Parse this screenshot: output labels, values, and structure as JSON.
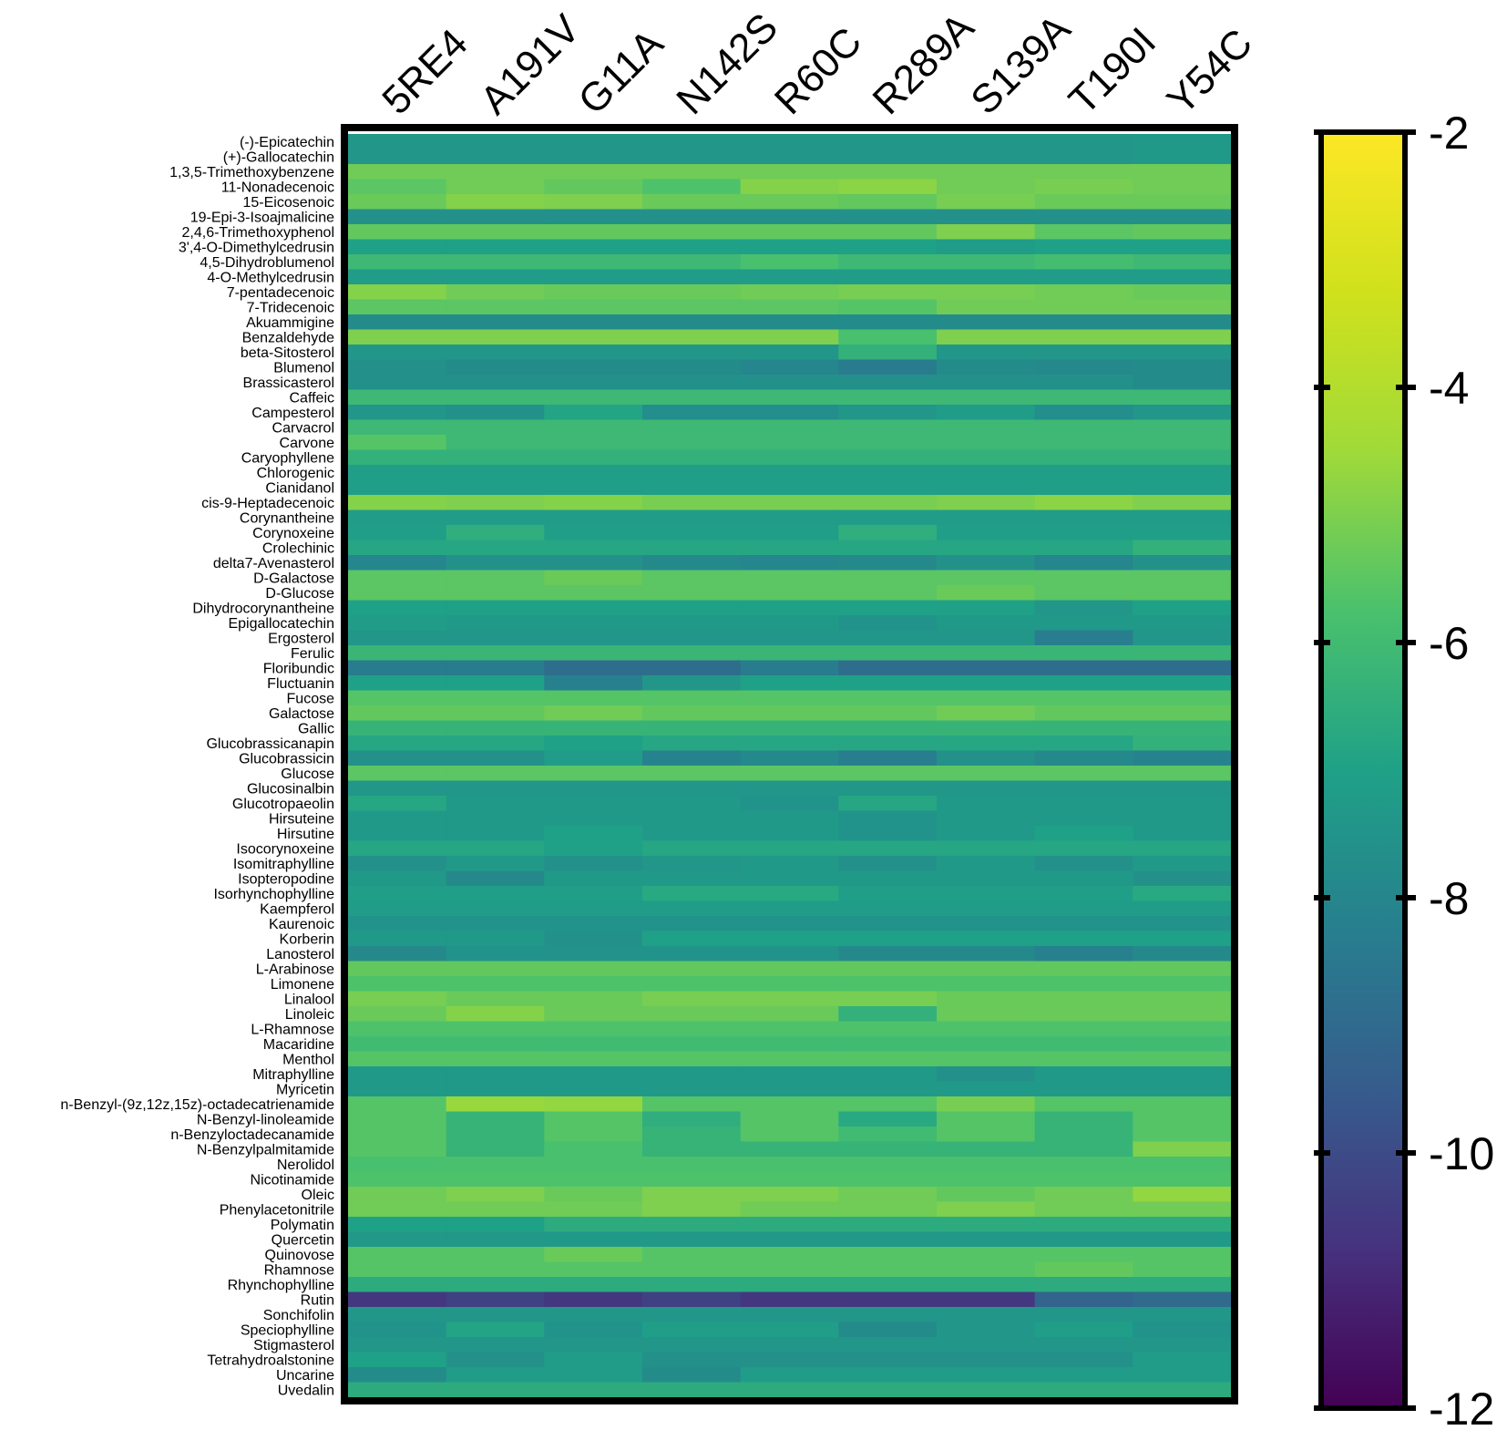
{
  "chart_data": {
    "type": "heatmap",
    "title": "",
    "xlabel": "",
    "ylabel": "",
    "columns": [
      "5RE4",
      "A191V",
      "G11A",
      "N142S",
      "R60C",
      "R289A",
      "S139A",
      "T190I",
      "Y54C"
    ],
    "rows": [
      "(-)-Epicatechin",
      "(+)-Gallocatechin",
      "1,3,5-Trimethoxybenzene",
      "11-Nonadecenoic",
      "15-Eicosenoic",
      "19-Epi-3-Isoajmalicine",
      "2,4,6-Trimethoxyphenol",
      "3',4-O-Dimethylcedrusin",
      "4,5-Dihydroblumenol",
      "4-O-Methylcedrusin",
      "7-pentadecenoic",
      "7-Tridecenoic",
      "Akuammigine",
      "Benzaldehyde",
      "beta-Sitosterol",
      "Blumenol",
      "Brassicasterol",
      "Caffeic",
      "Campesterol",
      "Carvacrol",
      "Carvone",
      "Caryophyllene",
      "Chlorogenic",
      "Cianidanol",
      "cis-9-Heptadecenoic",
      "Corynantheine",
      "Corynoxeine",
      "Crolechinic",
      "delta7-Avenasterol",
      "D-Galactose",
      "D-Glucose",
      "Dihydrocorynantheine",
      "Epigallocatechin",
      "Ergosterol",
      "Ferulic",
      "Floribundic",
      "Fluctuanin",
      "Fucose",
      "Galactose",
      "Gallic",
      "Glucobrassicanapin",
      "Glucobrassicin",
      "Glucose",
      "Glucosinalbin",
      "Glucotropaeolin",
      "Hirsuteine",
      "Hirsutine",
      "Isocorynoxeine",
      "Isomitraphylline",
      "Isopteropodine",
      "Isorhynchophylline",
      "Kaempferol",
      "Kaurenoic",
      "Korberin",
      "Lanosterol",
      "L-Arabinose",
      "Limonene",
      "Linalool",
      "Linoleic",
      "L-Rhamnose",
      "Macaridine",
      "Menthol",
      "Mitraphylline",
      "Myricetin",
      "n-Benzyl-(9z,12z,15z)-octadecatrienamide",
      "N-Benzyl-linoleamide",
      "n-Benzyloctadecanamide",
      "N-Benzylpalmitamide",
      "Nerolidol",
      "Nicotinamide",
      "Oleic",
      "Phenylacetonitrile",
      "Polymatin",
      "Quercetin",
      "Quinovose",
      "Rhamnose",
      "Rhynchophylline",
      "Rutin",
      "Sonchifolin",
      "Speciophylline",
      "Stigmasterol",
      "Tetrahydroalstonine",
      "Uncarine",
      "Uvedalin"
    ],
    "values": [
      [
        -7.4,
        -7.4,
        -7.4,
        -7.4,
        -7.4,
        -7.4,
        -7.4,
        -7.4,
        -7.3
      ],
      [
        -7.4,
        -7.4,
        -7.4,
        -7.4,
        -7.4,
        -7.4,
        -7.4,
        -7.4,
        -7.3
      ],
      [
        -5.2,
        -5.2,
        -5.2,
        -5.2,
        -5.2,
        -5.2,
        -5.2,
        -5.2,
        -5.2
      ],
      [
        -5.5,
        -5.2,
        -5.4,
        -5.7,
        -4.9,
        -4.8,
        -5.2,
        -5.1,
        -5.2
      ],
      [
        -5.3,
        -4.9,
        -5.0,
        -5.3,
        -5.3,
        -5.4,
        -5.1,
        -5.3,
        -5.3
      ],
      [
        -7.6,
        -7.6,
        -7.6,
        -7.6,
        -7.6,
        -7.6,
        -7.6,
        -7.6,
        -7.6
      ],
      [
        -5.4,
        -5.4,
        -5.4,
        -5.4,
        -5.4,
        -5.4,
        -5.0,
        -5.5,
        -5.4
      ],
      [
        -7.0,
        -7.0,
        -7.0,
        -7.0,
        -7.0,
        -7.0,
        -7.2,
        -7.0,
        -7.0
      ],
      [
        -6.1,
        -6.1,
        -6.1,
        -6.1,
        -5.8,
        -6.1,
        -6.1,
        -5.9,
        -6.1
      ],
      [
        -7.2,
        -7.2,
        -7.2,
        -7.2,
        -7.2,
        -7.2,
        -7.2,
        -7.2,
        -7.2
      ],
      [
        -4.9,
        -5.2,
        -5.3,
        -5.3,
        -5.2,
        -5.1,
        -5.1,
        -5.2,
        -5.3
      ],
      [
        -5.5,
        -5.5,
        -5.5,
        -5.5,
        -5.5,
        -5.6,
        -5.2,
        -5.2,
        -5.2
      ],
      [
        -7.8,
        -7.8,
        -7.8,
        -7.8,
        -7.8,
        -7.8,
        -7.8,
        -7.8,
        -7.8
      ],
      [
        -5.0,
        -5.0,
        -5.0,
        -5.0,
        -5.0,
        -5.8,
        -5.0,
        -5.0,
        -5.0
      ],
      [
        -7.4,
        -7.4,
        -7.4,
        -7.4,
        -7.4,
        -6.4,
        -7.4,
        -7.4,
        -7.4
      ],
      [
        -7.6,
        -7.8,
        -7.8,
        -7.8,
        -8.0,
        -8.4,
        -7.8,
        -7.9,
        -7.8
      ],
      [
        -7.6,
        -7.6,
        -7.6,
        -7.6,
        -7.6,
        -7.6,
        -7.6,
        -7.6,
        -7.8
      ],
      [
        -6.1,
        -6.1,
        -6.1,
        -6.1,
        -6.1,
        -6.1,
        -6.1,
        -6.1,
        -6.1
      ],
      [
        -7.4,
        -7.6,
        -6.9,
        -7.7,
        -7.7,
        -7.4,
        -7.2,
        -7.7,
        -7.4
      ],
      [
        -6.1,
        -6.1,
        -6.1,
        -6.1,
        -6.1,
        -6.1,
        -6.1,
        -6.1,
        -6.1
      ],
      [
        -5.6,
        -6.1,
        -6.1,
        -6.1,
        -6.1,
        -6.1,
        -6.1,
        -6.1,
        -6.1
      ],
      [
        -6.4,
        -6.4,
        -6.4,
        -6.4,
        -6.4,
        -6.4,
        -6.4,
        -6.4,
        -6.4
      ],
      [
        -7.1,
        -7.1,
        -7.1,
        -7.1,
        -7.1,
        -7.1,
        -7.1,
        -7.1,
        -7.1
      ],
      [
        -7.1,
        -7.1,
        -7.1,
        -7.1,
        -7.1,
        -7.1,
        -7.1,
        -7.1,
        -7.1
      ],
      [
        -4.9,
        -5.0,
        -4.9,
        -5.1,
        -5.1,
        -5.1,
        -5.0,
        -4.8,
        -5.0
      ],
      [
        -7.2,
        -7.2,
        -7.2,
        -7.2,
        -7.2,
        -7.2,
        -7.2,
        -7.2,
        -7.2
      ],
      [
        -7.1,
        -6.5,
        -7.1,
        -7.1,
        -7.1,
        -6.5,
        -7.1,
        -7.1,
        -7.1
      ],
      [
        -6.8,
        -6.8,
        -6.8,
        -6.8,
        -6.8,
        -6.8,
        -6.8,
        -6.8,
        -6.4
      ],
      [
        -8.0,
        -7.6,
        -7.6,
        -7.9,
        -8.0,
        -7.9,
        -7.6,
        -8.0,
        -7.6
      ],
      [
        -5.5,
        -5.5,
        -5.3,
        -5.5,
        -5.5,
        -5.5,
        -5.5,
        -5.5,
        -5.5
      ],
      [
        -5.5,
        -5.5,
        -5.5,
        -5.5,
        -5.5,
        -5.5,
        -5.3,
        -5.5,
        -5.5
      ],
      [
        -7.0,
        -7.0,
        -7.0,
        -7.0,
        -7.0,
        -7.0,
        -7.0,
        -7.4,
        -7.0
      ],
      [
        -7.2,
        -7.3,
        -7.3,
        -7.3,
        -7.3,
        -7.5,
        -7.3,
        -7.3,
        -7.3
      ],
      [
        -7.4,
        -7.4,
        -7.4,
        -7.4,
        -7.4,
        -7.4,
        -7.4,
        -8.3,
        -7.4
      ],
      [
        -6.2,
        -6.2,
        -6.2,
        -6.2,
        -6.2,
        -6.2,
        -6.2,
        -6.2,
        -6.2
      ],
      [
        -8.4,
        -8.4,
        -8.9,
        -8.9,
        -8.4,
        -8.9,
        -8.9,
        -8.9,
        -8.9
      ],
      [
        -7.0,
        -7.0,
        -8.2,
        -7.4,
        -7.0,
        -7.0,
        -7.0,
        -7.0,
        -7.0
      ],
      [
        -5.6,
        -5.6,
        -5.6,
        -5.6,
        -5.6,
        -5.6,
        -5.6,
        -5.6,
        -5.6
      ],
      [
        -5.4,
        -5.4,
        -5.2,
        -5.4,
        -5.4,
        -5.4,
        -5.2,
        -5.4,
        -5.4
      ],
      [
        -6.3,
        -6.3,
        -6.3,
        -6.3,
        -6.3,
        -6.3,
        -6.3,
        -6.3,
        -6.3
      ],
      [
        -6.8,
        -6.8,
        -7.0,
        -6.8,
        -6.8,
        -6.8,
        -6.8,
        -6.8,
        -6.4
      ],
      [
        -7.6,
        -7.6,
        -7.2,
        -8.1,
        -7.9,
        -8.3,
        -7.6,
        -7.9,
        -8.1
      ],
      [
        -5.5,
        -5.5,
        -5.5,
        -5.5,
        -5.5,
        -5.5,
        -5.5,
        -5.5,
        -5.5
      ],
      [
        -7.4,
        -7.4,
        -7.4,
        -7.4,
        -7.4,
        -7.4,
        -7.4,
        -7.4,
        -7.4
      ],
      [
        -6.8,
        -7.3,
        -7.3,
        -7.3,
        -7.5,
        -6.8,
        -7.3,
        -7.3,
        -7.3
      ],
      [
        -7.3,
        -7.3,
        -7.3,
        -7.3,
        -7.3,
        -7.5,
        -7.3,
        -7.3,
        -7.3
      ],
      [
        -7.3,
        -7.3,
        -7.0,
        -7.3,
        -7.3,
        -7.5,
        -7.3,
        -7.0,
        -7.3
      ],
      [
        -6.8,
        -6.8,
        -7.0,
        -6.8,
        -6.8,
        -6.8,
        -6.8,
        -6.8,
        -6.8
      ],
      [
        -7.6,
        -7.3,
        -7.6,
        -7.4,
        -7.3,
        -7.6,
        -7.3,
        -7.6,
        -7.3
      ],
      [
        -7.3,
        -7.9,
        -7.3,
        -7.3,
        -7.3,
        -7.3,
        -7.3,
        -7.3,
        -7.6
      ],
      [
        -7.1,
        -7.1,
        -7.1,
        -6.7,
        -6.7,
        -7.1,
        -7.1,
        -7.1,
        -6.7
      ],
      [
        -7.2,
        -7.2,
        -7.2,
        -7.2,
        -7.2,
        -7.2,
        -7.2,
        -7.2,
        -7.2
      ],
      [
        -7.5,
        -7.5,
        -7.5,
        -7.5,
        -7.5,
        -7.5,
        -7.5,
        -7.5,
        -7.5
      ],
      [
        -7.3,
        -7.3,
        -7.6,
        -7.0,
        -7.0,
        -7.0,
        -7.0,
        -7.0,
        -7.0
      ],
      [
        -7.9,
        -7.5,
        -7.5,
        -7.5,
        -7.5,
        -7.9,
        -7.9,
        -8.2,
        -7.9
      ],
      [
        -5.4,
        -5.4,
        -5.4,
        -5.4,
        -5.4,
        -5.4,
        -5.4,
        -5.4,
        -5.4
      ],
      [
        -5.7,
        -5.7,
        -5.7,
        -5.7,
        -5.7,
        -5.7,
        -5.7,
        -5.7,
        -5.7
      ],
      [
        -5.1,
        -5.3,
        -5.3,
        -5.1,
        -5.1,
        -5.1,
        -5.3,
        -5.3,
        -5.3
      ],
      [
        -5.3,
        -4.9,
        -5.3,
        -5.3,
        -5.3,
        -6.4,
        -5.3,
        -5.3,
        -5.3
      ],
      [
        -5.7,
        -5.7,
        -5.7,
        -5.7,
        -5.7,
        -5.7,
        -5.7,
        -5.7,
        -5.7
      ],
      [
        -6.0,
        -6.0,
        -6.0,
        -6.0,
        -6.0,
        -6.0,
        -6.0,
        -6.0,
        -6.0
      ],
      [
        -5.6,
        -5.6,
        -5.6,
        -5.6,
        -5.6,
        -5.6,
        -5.6,
        -5.6,
        -5.6
      ],
      [
        -7.3,
        -7.3,
        -7.3,
        -7.3,
        -7.3,
        -7.3,
        -7.6,
        -7.3,
        -7.3
      ],
      [
        -7.3,
        -7.3,
        -7.3,
        -7.3,
        -7.3,
        -7.3,
        -7.3,
        -7.3,
        -7.3
      ],
      [
        -5.6,
        -4.6,
        -4.7,
        -5.6,
        -5.6,
        -5.6,
        -5.1,
        -5.6,
        -5.6
      ],
      [
        -5.6,
        -6.3,
        -5.6,
        -6.5,
        -5.6,
        -6.7,
        -5.6,
        -6.3,
        -5.6
      ],
      [
        -5.6,
        -6.3,
        -5.6,
        -6.3,
        -5.6,
        -6.0,
        -5.6,
        -6.3,
        -5.6
      ],
      [
        -5.6,
        -6.3,
        -5.8,
        -6.3,
        -6.3,
        -6.3,
        -6.3,
        -6.3,
        -5.0
      ],
      [
        -5.8,
        -5.8,
        -5.8,
        -5.8,
        -5.8,
        -5.8,
        -5.8,
        -5.8,
        -5.8
      ],
      [
        -5.7,
        -5.7,
        -5.7,
        -5.7,
        -5.7,
        -5.7,
        -5.7,
        -5.7,
        -5.7
      ],
      [
        -5.2,
        -5.0,
        -5.3,
        -5.0,
        -5.0,
        -5.2,
        -5.4,
        -5.2,
        -4.7
      ],
      [
        -5.2,
        -5.2,
        -5.2,
        -5.0,
        -5.2,
        -5.2,
        -5.0,
        -5.2,
        -5.2
      ],
      [
        -7.0,
        -7.0,
        -6.6,
        -6.6,
        -6.6,
        -6.6,
        -6.6,
        -6.6,
        -6.6
      ],
      [
        -7.3,
        -7.3,
        -7.3,
        -7.3,
        -7.3,
        -7.3,
        -7.3,
        -7.3,
        -7.3
      ],
      [
        -5.6,
        -5.6,
        -5.3,
        -5.6,
        -5.6,
        -5.6,
        -5.6,
        -5.6,
        -5.6
      ],
      [
        -5.6,
        -5.6,
        -5.6,
        -5.6,
        -5.6,
        -5.6,
        -5.6,
        -5.4,
        -5.6
      ],
      [
        -6.6,
        -6.6,
        -6.6,
        -6.6,
        -6.6,
        -6.6,
        -6.6,
        -6.6,
        -6.6
      ],
      [
        -10.6,
        -10.3,
        -10.6,
        -10.3,
        -10.6,
        -10.6,
        -10.6,
        -9.2,
        -9.0
      ],
      [
        -7.4,
        -7.4,
        -7.4,
        -7.4,
        -7.4,
        -7.4,
        -7.4,
        -7.4,
        -7.4
      ],
      [
        -7.5,
        -6.9,
        -7.5,
        -7.1,
        -7.1,
        -7.8,
        -7.4,
        -7.1,
        -7.5
      ],
      [
        -7.4,
        -7.4,
        -7.4,
        -7.4,
        -7.4,
        -7.4,
        -7.4,
        -7.4,
        -7.4
      ],
      [
        -7.0,
        -7.6,
        -7.2,
        -7.6,
        -7.6,
        -7.6,
        -7.6,
        -7.6,
        -7.2
      ],
      [
        -7.8,
        -7.2,
        -7.2,
        -7.8,
        -7.2,
        -7.2,
        -7.2,
        -7.2,
        -7.2
      ],
      [
        -6.6,
        -6.6,
        -6.6,
        -6.6,
        -6.6,
        -6.6,
        -6.6,
        -6.6,
        -6.6
      ]
    ],
    "colorbar": {
      "min": -12,
      "max": -2,
      "ticks": [
        -2,
        -4,
        -6,
        -8,
        -10,
        -12
      ],
      "tick_labels": [
        "-2",
        "-4",
        "-6",
        "-8",
        "-10",
        "-12"
      ],
      "colormap": "viridis"
    },
    "grid": false,
    "legend_position": "right"
  }
}
